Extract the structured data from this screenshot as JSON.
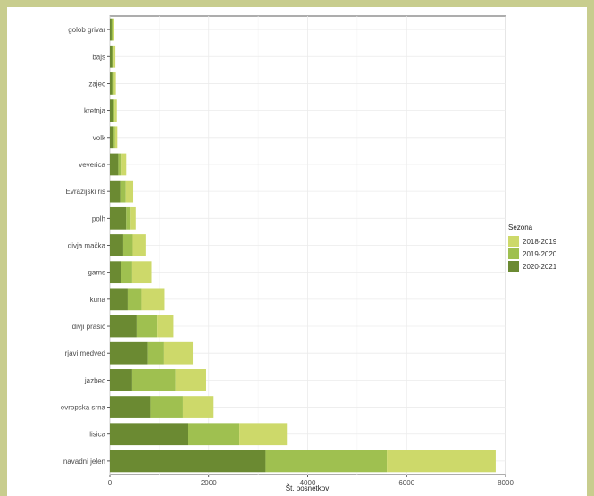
{
  "chart_data": {
    "type": "bar",
    "orientation": "horizontal",
    "stacked": true,
    "title": "",
    "xlabel": "Št. posnetkov",
    "ylabel": "",
    "xlim": [
      0,
      8000
    ],
    "x_ticks": [
      0,
      2000,
      4000,
      6000,
      8000
    ],
    "grid": true,
    "legend_position": "right",
    "legend_title": "Sezona",
    "categories": [
      "navadni jelen",
      "lisica",
      "evropska srna",
      "jazbec",
      "rjavi medved",
      "divji prašič",
      "kuna",
      "gams",
      "divja mačka",
      "polh",
      "Evrazijski ris",
      "veverica",
      "volk",
      "kretnja",
      "zajec",
      "bajs",
      "golob grivar"
    ],
    "series": [
      {
        "name": "2020-2021",
        "color": "#6b8a32",
        "values": [
          3150,
          1580,
          820,
          450,
          770,
          540,
          360,
          230,
          270,
          330,
          210,
          170,
          65,
          55,
          45,
          45,
          35
        ]
      },
      {
        "name": "2019-2020",
        "color": "#9fc050",
        "values": [
          2450,
          1040,
          660,
          880,
          330,
          420,
          280,
          220,
          190,
          90,
          110,
          70,
          40,
          40,
          35,
          30,
          25
        ]
      },
      {
        "name": "2018-2019",
        "color": "#cdd96a",
        "values": [
          2200,
          960,
          620,
          620,
          580,
          330,
          470,
          390,
          260,
          100,
          150,
          90,
          45,
          45,
          40,
          35,
          30
        ]
      }
    ],
    "legend_order": [
      "2018-2019",
      "2019-2020",
      "2020-2021"
    ]
  }
}
